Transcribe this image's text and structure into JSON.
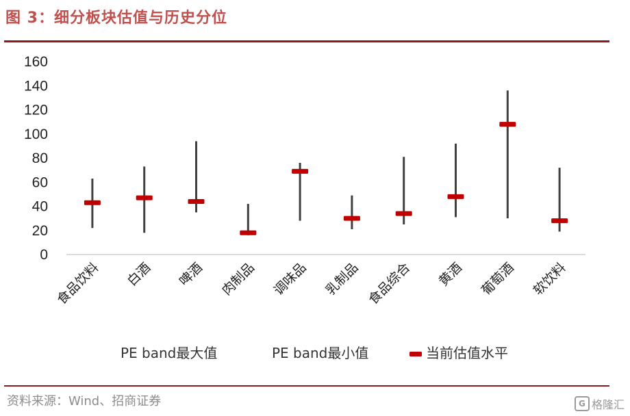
{
  "figure_title": "图 3：细分板块估值与历史分位",
  "source": "资料来源：Wind、招商证券",
  "watermark": {
    "text": "格隆汇",
    "logo": "G"
  },
  "colors": {
    "title": "#c0504d",
    "rule": "#8b1a1a",
    "range_line": "#404040",
    "current_marker": "#c00000"
  },
  "chart_data": {
    "type": "stock",
    "title": "",
    "xlabel": "",
    "ylabel": "",
    "ylim": [
      0,
      160
    ],
    "yticks": [
      0,
      20,
      40,
      60,
      80,
      100,
      120,
      140,
      160
    ],
    "grid": false,
    "legend_position": "bottom",
    "categories": [
      "食品饮料",
      "白酒",
      "啤酒",
      "肉制品",
      "调味品",
      "乳制品",
      "食品综合",
      "黄酒",
      "葡萄酒",
      "软饮料"
    ],
    "series": [
      {
        "name": "PE band最大值",
        "values": [
          63,
          73,
          94,
          42,
          76,
          49,
          81,
          92,
          136,
          72
        ]
      },
      {
        "name": "PE band最小值",
        "values": [
          22,
          18,
          35,
          16,
          28,
          21,
          25,
          31,
          30,
          19
        ]
      },
      {
        "name": "当前估值水平",
        "values": [
          43,
          47,
          44,
          18,
          69,
          30,
          34,
          48,
          108,
          28
        ]
      }
    ]
  }
}
